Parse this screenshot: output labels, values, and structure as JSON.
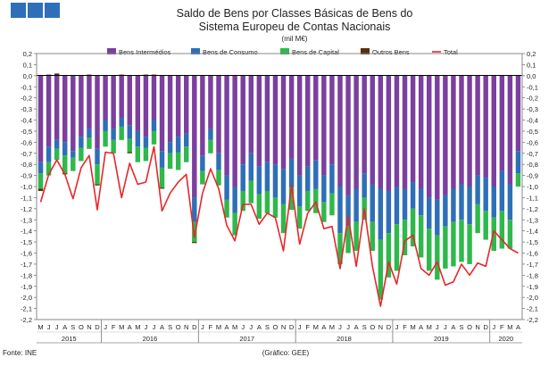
{
  "header": {
    "logo_color": "#2e6fb7",
    "title_line1": "Saldo de Bens por Classes Básicas de Bens do",
    "title_line2": "Sistema Europeu de Contas Nacionais",
    "unit": "(mil M€)"
  },
  "footer": {
    "source": "Fonte: INE",
    "credit": "(Gráfico: GEE)"
  },
  "chart_data": {
    "type": "bar",
    "stacked": true,
    "ylim": [
      -2.2,
      0.2
    ],
    "yticks": [
      "0,2",
      "0,1",
      "0,0",
      "-0,1",
      "-0,2",
      "-0,3",
      "-0,4",
      "-0,5",
      "-0,6",
      "-0,7",
      "-0,8",
      "-0,9",
      "-1,0",
      "-1,1",
      "-1,2",
      "-1,3",
      "-1,4",
      "-1,5",
      "-1,6",
      "-1,7",
      "-1,8",
      "-1,9",
      "-2,0",
      "-2,1",
      "-2,2"
    ],
    "grid": false,
    "legend_position": "top",
    "categories": [
      "M",
      "J",
      "J",
      "A",
      "S",
      "O",
      "N",
      "D",
      "J",
      "F",
      "M",
      "A",
      "M",
      "J",
      "J",
      "A",
      "S",
      "O",
      "N",
      "D",
      "J",
      "F",
      "M",
      "A",
      "M",
      "J",
      "J",
      "A",
      "S",
      "O",
      "N",
      "D",
      "J",
      "F",
      "M",
      "A",
      "M",
      "J",
      "J",
      "A",
      "S",
      "O",
      "N",
      "D",
      "J",
      "F",
      "M",
      "A",
      "M",
      "J",
      "J",
      "A",
      "S",
      "O",
      "N",
      "D",
      "J",
      "F",
      "M",
      "A"
    ],
    "years": [
      {
        "label": "2015",
        "from": 0,
        "to": 7
      },
      {
        "label": "2016",
        "from": 8,
        "to": 19
      },
      {
        "label": "2017",
        "from": 20,
        "to": 31
      },
      {
        "label": "2018",
        "from": 32,
        "to": 43
      },
      {
        "label": "2019",
        "from": 44,
        "to": 55
      },
      {
        "label": "2020",
        "from": 56,
        "to": 59
      }
    ],
    "series": [
      {
        "name": "Bens Intermédios",
        "color": "#7b3f9e",
        "values": [
          -0.78,
          -0.64,
          -0.58,
          -0.6,
          -0.68,
          -0.55,
          -0.48,
          -0.66,
          -0.4,
          -0.48,
          -0.38,
          -0.45,
          -0.5,
          -0.55,
          -0.4,
          -0.68,
          -0.6,
          -0.55,
          -0.52,
          -1.1,
          -0.72,
          -0.48,
          -0.7,
          -0.9,
          -1.0,
          -0.8,
          -0.7,
          -0.82,
          -0.78,
          -0.8,
          -0.84,
          -0.75,
          -0.9,
          -0.82,
          -0.76,
          -0.9,
          -0.8,
          -1.0,
          -1.08,
          -1.02,
          -0.88,
          -0.98,
          -1.02,
          -1.04,
          -1.0,
          -1.02,
          -0.96,
          -1.02,
          -1.1,
          -1.12,
          -1.08,
          -1.02,
          -0.98,
          -1.0,
          -0.9,
          -0.92,
          -1.0,
          -0.86,
          -0.98,
          -0.68
        ]
      },
      {
        "name": "Bens de Consumo",
        "color": "#2e6fb7",
        "values": [
          -0.1,
          -0.14,
          -0.08,
          -0.12,
          -0.06,
          -0.1,
          -0.08,
          -0.14,
          -0.1,
          -0.1,
          -0.08,
          -0.12,
          -0.14,
          -0.1,
          -0.1,
          -0.15,
          -0.1,
          -0.14,
          -0.12,
          -0.22,
          -0.14,
          -0.1,
          -0.15,
          -0.22,
          -0.24,
          -0.24,
          -0.25,
          -0.25,
          -0.26,
          -0.3,
          -0.32,
          -0.26,
          -0.28,
          -0.22,
          -0.26,
          -0.24,
          -0.26,
          -0.42,
          -0.28,
          -0.3,
          -0.22,
          -0.34,
          -0.46,
          -0.38,
          -0.34,
          -0.28,
          -0.24,
          -0.24,
          -0.28,
          -0.32,
          -0.28,
          -0.3,
          -0.32,
          -0.34,
          -0.26,
          -0.3,
          -0.28,
          -0.36,
          -0.32,
          -0.2
        ]
      },
      {
        "name": "Bens de Capital",
        "color": "#2fb84c",
        "values": [
          -0.14,
          -0.12,
          -0.1,
          -0.16,
          -0.12,
          -0.12,
          -0.1,
          -0.18,
          -0.14,
          -0.12,
          -0.12,
          -0.12,
          -0.14,
          -0.12,
          -0.12,
          -0.18,
          -0.14,
          -0.16,
          -0.14,
          -0.18,
          -0.12,
          -0.12,
          -0.14,
          -0.16,
          -0.2,
          -0.18,
          -0.2,
          -0.22,
          -0.2,
          -0.18,
          -0.26,
          -0.2,
          -0.2,
          -0.18,
          -0.22,
          -0.18,
          -0.2,
          -0.28,
          -0.24,
          -0.26,
          -0.2,
          -0.26,
          -0.54,
          -0.4,
          -0.42,
          -0.32,
          -0.34,
          -0.38,
          -0.38,
          -0.4,
          -0.38,
          -0.4,
          -0.38,
          -0.36,
          -0.26,
          -0.26,
          -0.3,
          -0.34,
          -0.26,
          -0.12
        ]
      },
      {
        "name": "Outros Bens",
        "color": "#5a2d0c",
        "values": [
          -0.02,
          0.01,
          0.02,
          -0.01,
          0.0,
          0.0,
          0.01,
          -0.01,
          0.0,
          0.0,
          0.01,
          -0.01,
          0.0,
          0.01,
          0.01,
          -0.01,
          0.0,
          0.0,
          0.0,
          -0.01,
          0.0,
          0.0,
          0.0,
          0.0,
          0.0,
          0.0,
          0.0,
          0.0,
          0.0,
          0.0,
          0.0,
          0.0,
          0.0,
          0.0,
          0.0,
          0.0,
          0.0,
          0.0,
          0.0,
          0.0,
          0.0,
          0.0,
          0.0,
          0.0,
          0.0,
          0.0,
          0.0,
          0.0,
          0.0,
          0.0,
          0.0,
          0.0,
          0.0,
          0.0,
          0.0,
          0.0,
          0.0,
          0.0,
          0.0,
          0.0
        ]
      },
      {
        "name": "Total",
        "color": "#e8262a",
        "type": "line",
        "values": [
          -1.14,
          -0.89,
          -0.76,
          -0.89,
          -1.11,
          -0.83,
          -0.72,
          -1.21,
          -0.69,
          -0.7,
          -1.1,
          -0.79,
          -0.98,
          -0.96,
          -0.64,
          -1.22,
          -1.06,
          -0.96,
          -0.89,
          -1.46,
          -1.06,
          -0.84,
          -1.02,
          -1.35,
          -1.49,
          -1.16,
          -1.16,
          -1.34,
          -1.24,
          -1.28,
          -1.58,
          -0.99,
          -1.52,
          -1.24,
          -1.14,
          -1.38,
          -1.36,
          -1.74,
          -1.27,
          -1.72,
          -1.2,
          -1.72,
          -2.08,
          -1.68,
          -1.88,
          -1.49,
          -1.44,
          -1.74,
          -1.8,
          -1.68,
          -1.89,
          -1.86,
          -1.7,
          -1.8,
          -1.69,
          -1.72,
          -1.4,
          -1.48,
          -1.56,
          -1.6
        ]
      }
    ]
  }
}
